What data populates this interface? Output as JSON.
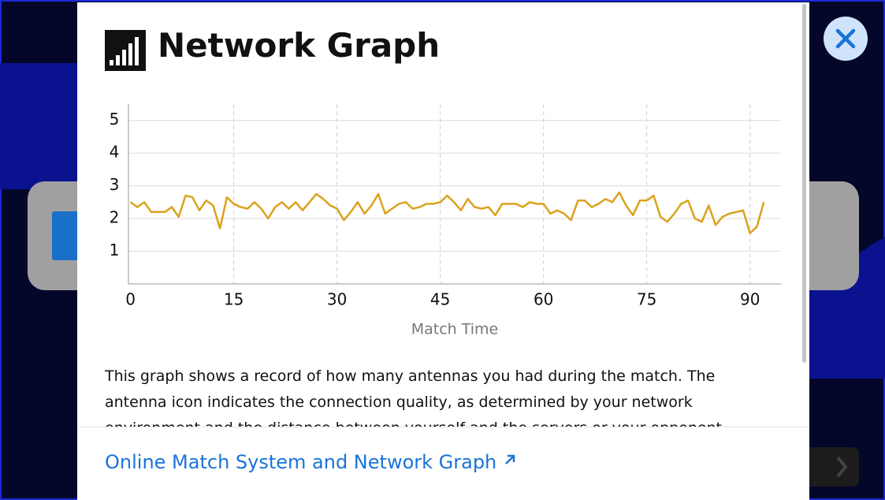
{
  "header": {
    "title": "Network Graph"
  },
  "chart_data": {
    "type": "line",
    "x_label": "Match Time",
    "x": [
      0,
      1,
      2,
      3,
      4,
      5,
      6,
      7,
      8,
      9,
      10,
      11,
      12,
      13,
      14,
      15,
      16,
      17,
      18,
      19,
      20,
      21,
      22,
      23,
      24,
      25,
      26,
      27,
      28,
      29,
      30,
      31,
      32,
      33,
      34,
      35,
      36,
      37,
      38,
      39,
      40,
      41,
      42,
      43,
      44,
      45,
      46,
      47,
      48,
      49,
      50,
      51,
      52,
      53,
      54,
      55,
      56,
      57,
      58,
      59,
      60,
      61,
      62,
      63,
      64,
      65,
      66,
      67,
      68,
      69,
      70,
      71,
      72,
      73,
      74,
      75,
      76,
      77,
      78,
      79,
      80,
      81,
      82,
      83,
      84,
      85,
      86,
      87,
      88,
      89,
      90,
      91,
      92
    ],
    "values": [
      2.5,
      2.35,
      2.5,
      2.2,
      2.2,
      2.2,
      2.35,
      2.05,
      2.7,
      2.65,
      2.25,
      2.55,
      2.4,
      1.7,
      2.65,
      2.45,
      2.35,
      2.3,
      2.5,
      2.3,
      2.0,
      2.35,
      2.5,
      2.3,
      2.5,
      2.25,
      2.5,
      2.75,
      2.6,
      2.4,
      2.3,
      1.95,
      2.2,
      2.5,
      2.15,
      2.4,
      2.75,
      2.15,
      2.3,
      2.45,
      2.5,
      2.3,
      2.35,
      2.45,
      2.45,
      2.5,
      2.7,
      2.5,
      2.25,
      2.6,
      2.35,
      2.3,
      2.35,
      2.1,
      2.45,
      2.45,
      2.45,
      2.35,
      2.5,
      2.45,
      2.45,
      2.15,
      2.25,
      2.15,
      1.95,
      2.55,
      2.55,
      2.35,
      2.45,
      2.6,
      2.5,
      2.8,
      2.4,
      2.1,
      2.55,
      2.55,
      2.7,
      2.05,
      1.9,
      2.15,
      2.45,
      2.55,
      2.0,
      1.9,
      2.4,
      1.8,
      2.05,
      2.15,
      2.2,
      2.25,
      1.55,
      1.75,
      2.5
    ],
    "color": "#dba21c",
    "xlim": [
      -0.3,
      94.5
    ],
    "ylim": [
      0,
      5.5
    ],
    "xticks": [
      0,
      15,
      30,
      45,
      60,
      75,
      90
    ],
    "yticks": [
      1,
      2,
      3,
      4,
      5
    ],
    "grid": true
  },
  "description": [
    "This graph shows a record of how many antennas you had during the match. The",
    "antenna icon indicates the connection quality, as determined by your network",
    "environment and the distance between yourself and the servers or your opponent."
  ],
  "link": "Online Match System and Network Graph"
}
